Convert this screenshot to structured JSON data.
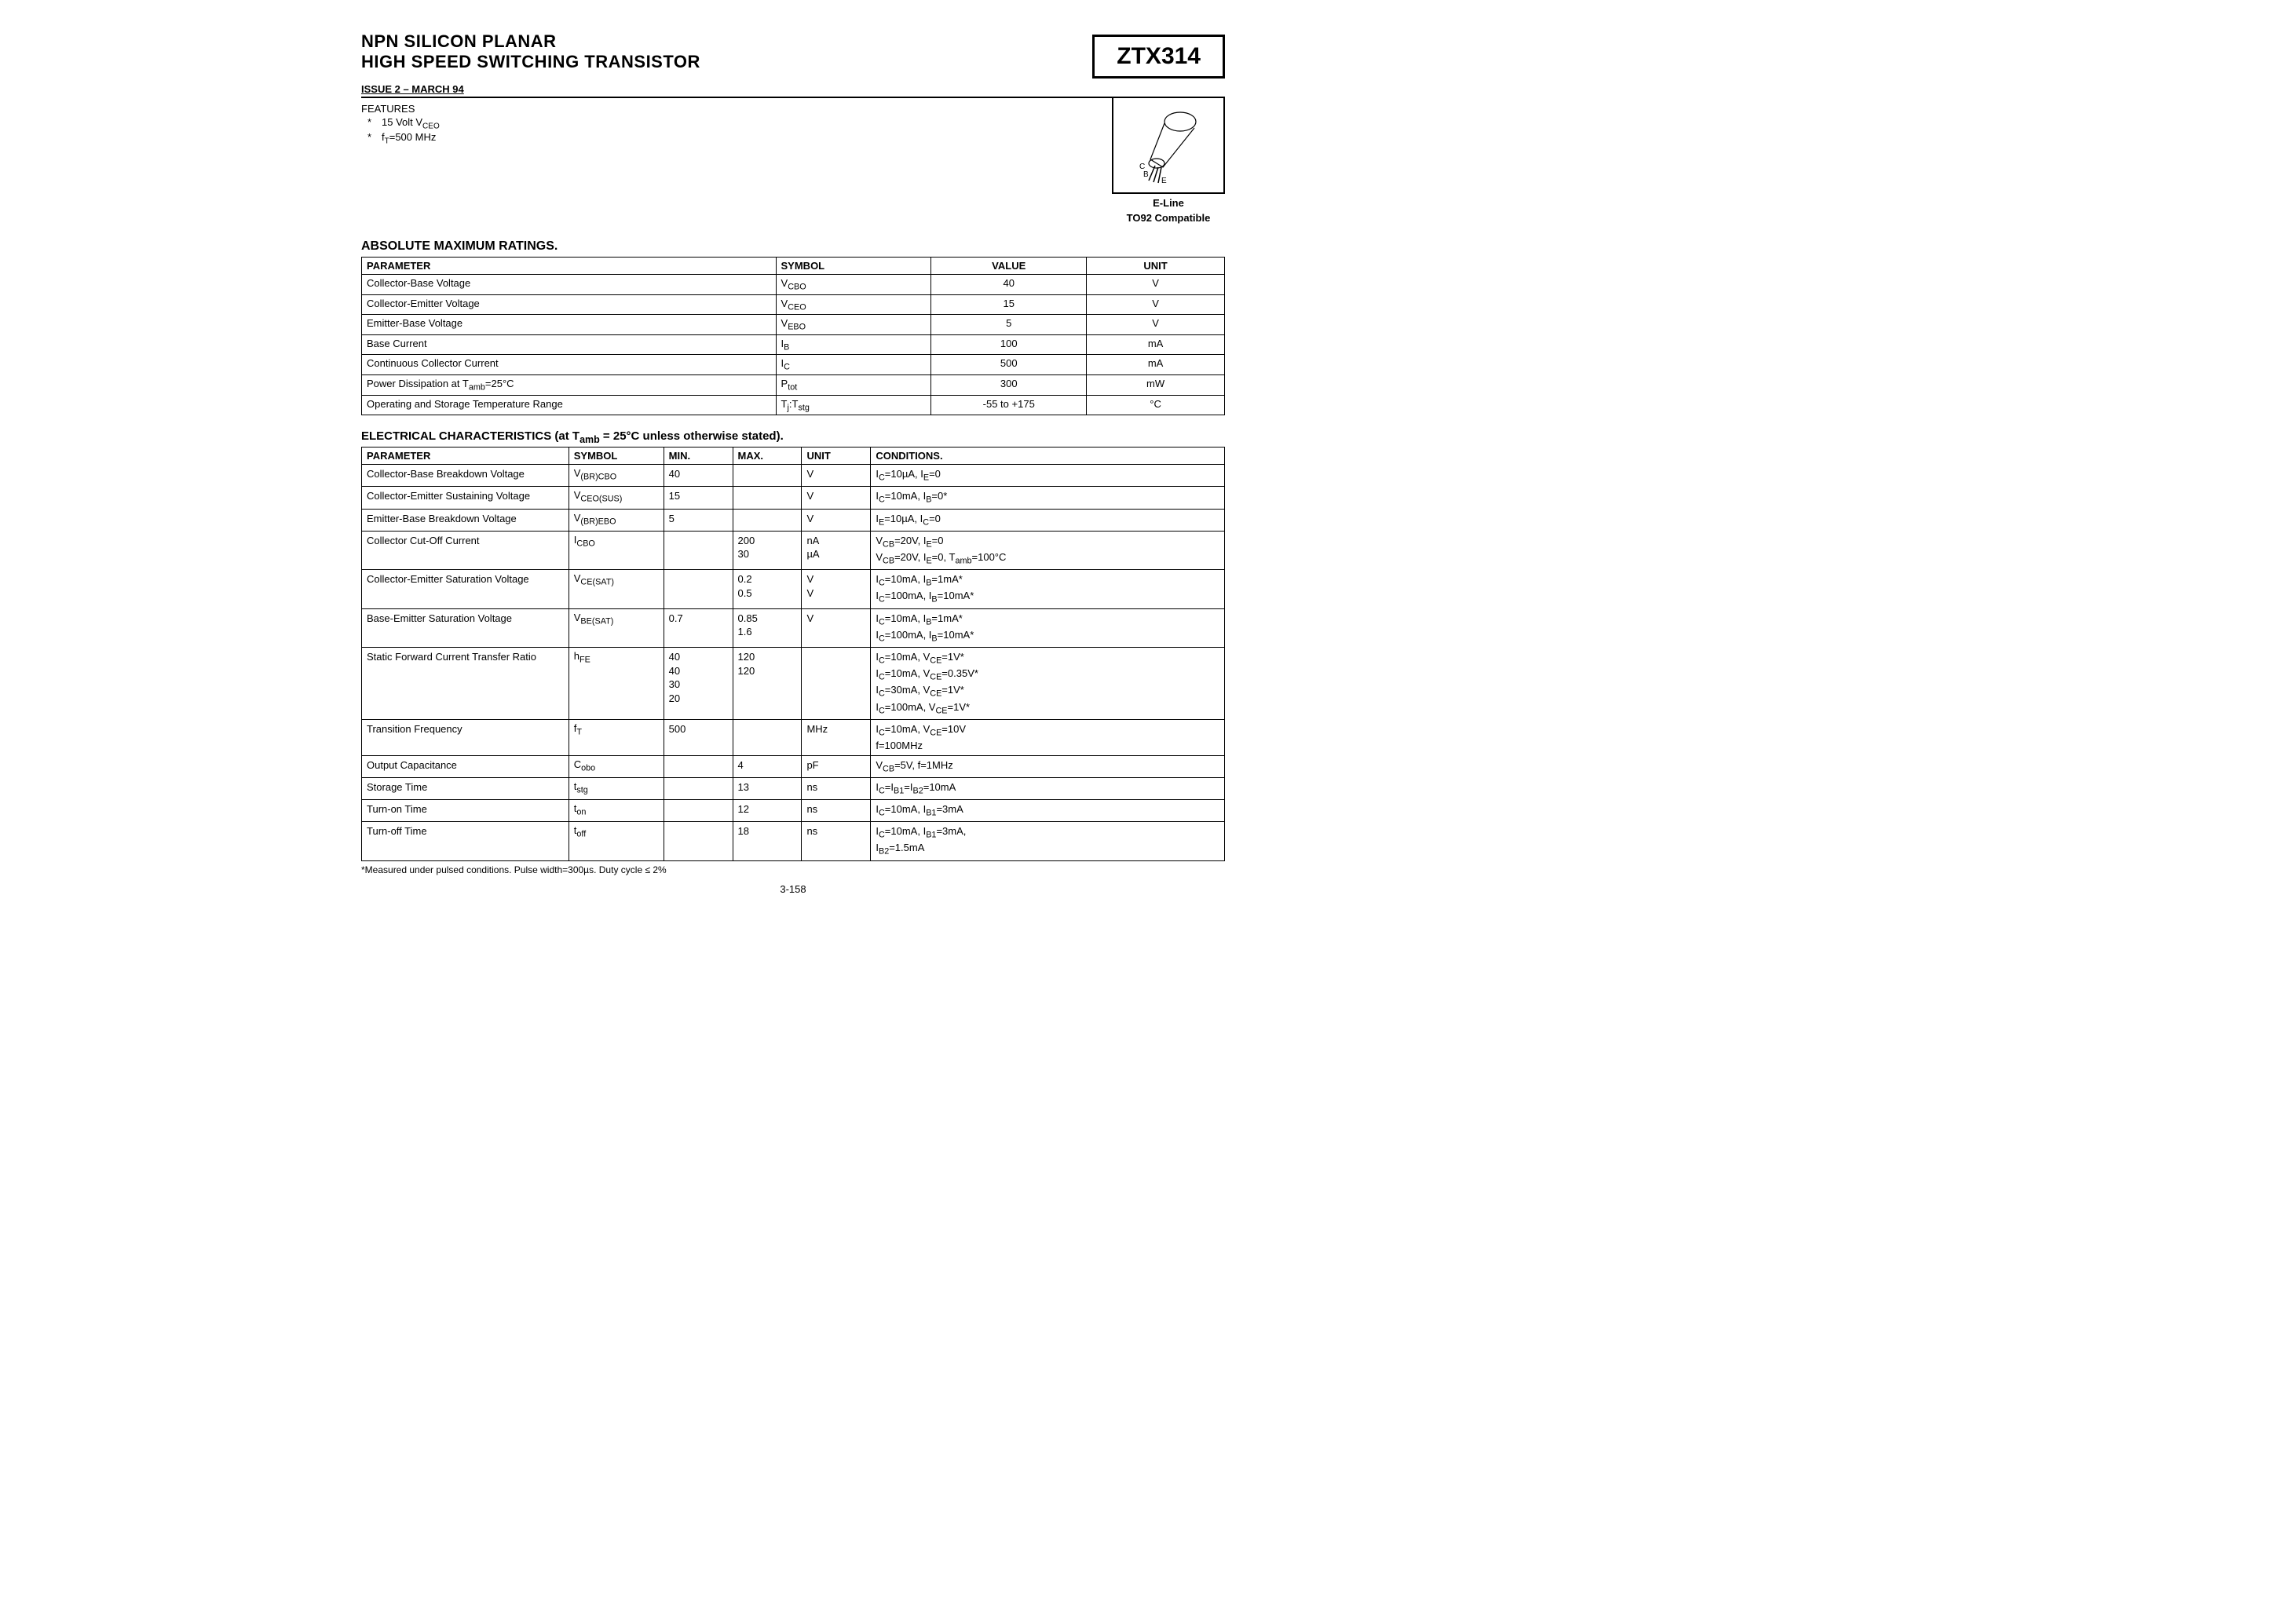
{
  "header": {
    "line1": "NPN SILICON PLANAR",
    "line2": "HIGH SPEED SWITCHING TRANSISTOR",
    "part": "ZTX314",
    "issue": "ISSUE 2 – MARCH 94"
  },
  "features": {
    "label": "FEATURES",
    "items": [
      "15 Volt V",
      "f  =500 MHz"
    ],
    "item0_sub": "CEO",
    "item1_sub": "T"
  },
  "package": {
    "line1": "E-Line",
    "line2": "TO92 Compatible",
    "pin_c": "C",
    "pin_b": "B",
    "pin_e": "E"
  },
  "abs": {
    "title": "ABSOLUTE MAXIMUM RATINGS.",
    "cols": [
      "PARAMETER",
      "SYMBOL",
      "VALUE",
      "UNIT"
    ],
    "rows": [
      {
        "p": "Collector-Base Voltage",
        "s": "V",
        "sub": "CBO",
        "v": "40",
        "u": "V"
      },
      {
        "p": "Collector-Emitter Voltage",
        "s": "V",
        "sub": "CEO",
        "v": "15",
        "u": "V"
      },
      {
        "p": "Emitter-Base Voltage",
        "s": "V",
        "sub": "EBO",
        "v": "5",
        "u": "V"
      },
      {
        "p": "Base Current",
        "s": "I",
        "sub": "B",
        "v": "100",
        "u": "mA"
      },
      {
        "p": "Continuous Collector Current",
        "s": "I",
        "sub": "C",
        "v": "500",
        "u": "mA"
      },
      {
        "p": "Power Dissipation at T",
        "p_sub": "amb",
        "p_tail": "=25°C",
        "s": "P",
        "sub": "tot",
        "v": "300",
        "u": "mW"
      },
      {
        "p": "Operating and Storage Temperature Range",
        "s": "T",
        "sub": "j",
        "s2": ":T",
        "sub2": "stg",
        "v": "-55 to +175",
        "u": "°C"
      }
    ]
  },
  "elec": {
    "title_pre": "ELECTRICAL CHARACTERISTICS (at T",
    "title_sub": "amb",
    "title_post": " = 25°C unless otherwise stated).",
    "cols": [
      "PARAMETER",
      "SYMBOL",
      "MIN.",
      "MAX.",
      "UNIT",
      "CONDITIONS."
    ],
    "rows": [
      {
        "p": "Collector-Base Breakdown Voltage",
        "s": "V",
        "sub": "(BR)CBO",
        "min": "40",
        "max": "",
        "u": "V",
        "c": "I<sub>C</sub>=10µA, I<sub>E</sub>=0"
      },
      {
        "p": "Collector-Emitter Sustaining Voltage",
        "s": "V",
        "sub": "CEO(SUS)",
        "min": "15",
        "max": "",
        "u": "V",
        "c": "I<sub>C</sub>=10mA, I<sub>B</sub>=0*"
      },
      {
        "p": "Emitter-Base Breakdown Voltage",
        "s": "V",
        "sub": "(BR)EBO",
        "min": "5",
        "max": "",
        "u": "V",
        "c": "I<sub>E</sub>=10µA, I<sub>C</sub>=0"
      },
      {
        "p": "Collector Cut-Off Current",
        "s": "I",
        "sub": "CBO",
        "min": "",
        "max": "200<br>30",
        "u": "nA<br>µA",
        "c": "V<sub>CB</sub>=20V, I<sub>E</sub>=0<br>V<sub>CB</sub>=20V, I<sub>E</sub>=0, T<sub>amb</sub>=100°C"
      },
      {
        "p": "Collector-Emitter Saturation Voltage",
        "s": "V",
        "sub": "CE(SAT)",
        "min": "",
        "max": "0.2<br>0.5",
        "u": "V<br>V",
        "c": "I<sub>C</sub>=10mA, I<sub>B</sub>=1mA*<br>I<sub>C</sub>=100mA, I<sub>B</sub>=10mA*"
      },
      {
        "p": "Base-Emitter Saturation Voltage",
        "s": "V",
        "sub": "BE(SAT)",
        "min": "0.7",
        "max": "0.85<br>1.6",
        "u": "V",
        "c": "I<sub>C</sub>=10mA, I<sub>B</sub>=1mA*<br>I<sub>C</sub>=100mA, I<sub>B</sub>=10mA*"
      },
      {
        "p": "Static Forward Current Transfer Ratio",
        "s": "h",
        "sub": "FE",
        "min": "40<br>40<br>30<br>20",
        "max": "120<br>120",
        "u": "",
        "c": "I<sub>C</sub>=10mA, V<sub>CE</sub>=1V*<br>I<sub>C</sub>=10mA, V<sub>CE</sub>=0.35V*<br>I<sub>C</sub>=30mA, V<sub>CE</sub>=1V*<br>I<sub>C</sub>=100mA, V<sub>CE</sub>=1V*"
      },
      {
        "p": "Transition Frequency",
        "s": "f",
        "sub": "T",
        "min": "500",
        "max": "",
        "u": "MHz",
        "c": "I<sub>C</sub>=10mA, V<sub>CE</sub>=10V<br>f=100MHz"
      },
      {
        "p": "Output Capacitance",
        "s": "C",
        "sub": "obo",
        "min": "",
        "max": "4",
        "u": "pF",
        "c": "V<sub>CB</sub>=5V, f=1MHz"
      },
      {
        "p": "Storage Time",
        "s": "t",
        "sub": "stg",
        "min": "",
        "max": "13",
        "u": "ns",
        "c": "I<sub>C</sub>=I<sub>B1</sub>=I<sub>B2</sub>=10mA"
      },
      {
        "p": "Turn-on Time",
        "s": "t",
        "sub": "on",
        "min": "",
        "max": "12",
        "u": "ns",
        "c": "I<sub>C</sub>=10mA, I<sub>B1</sub>=3mA"
      },
      {
        "p": "Turn-off Time",
        "s": "t",
        "sub": "off",
        "min": "",
        "max": "18",
        "u": "ns",
        "c": "I<sub>C</sub>=10mA, I<sub>B1</sub>=3mA,<br>I<sub>B2</sub>=1.5mA"
      }
    ]
  },
  "footnote": "*Measured under pulsed conditions. Pulse width=300µs. Duty cycle ≤ 2%",
  "pagenum": "3-158"
}
